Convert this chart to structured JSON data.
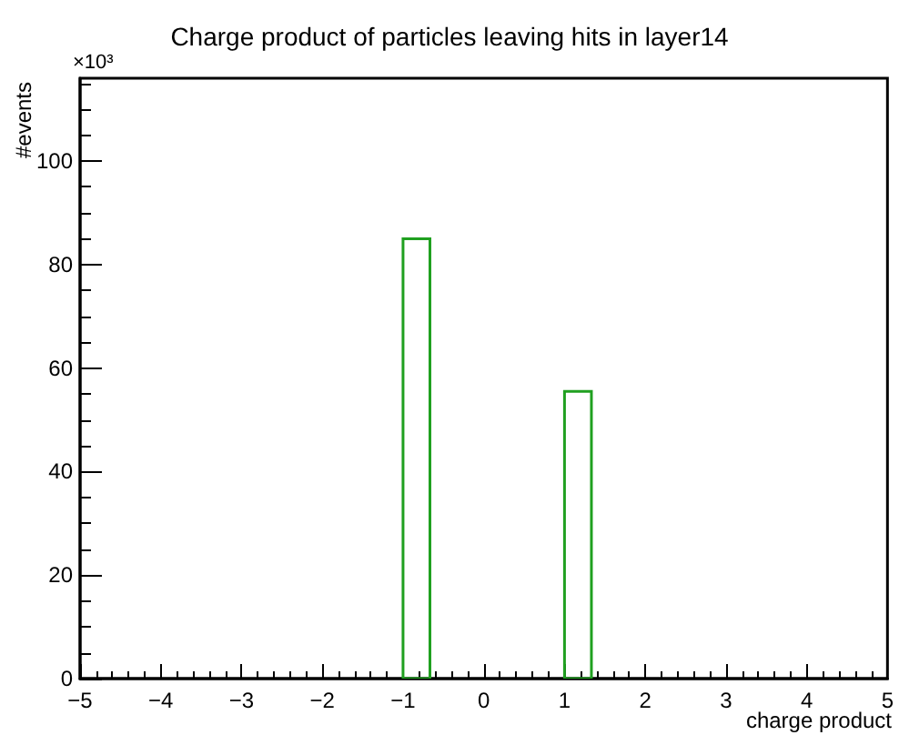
{
  "chart_data": {
    "type": "histogram",
    "title": "Charge product of particles leaving hits in layer14",
    "xlabel": "charge product",
    "ylabel": "#events",
    "annotations": [
      "×10³"
    ],
    "bins": [
      -5,
      -4.6667,
      -4.3333,
      -4,
      -3.6667,
      -3.3333,
      -3,
      -2.6667,
      -2.3333,
      -2,
      -1.6667,
      -1.3333,
      -1,
      -0.6667,
      -0.3333,
      0,
      0.3333,
      0.6667,
      1,
      1.3333,
      1.6667,
      2,
      2.3333,
      2.6667,
      3,
      3.3333,
      3.6667,
      4,
      4.3333,
      4.6667,
      5
    ],
    "values": [
      0,
      0,
      0,
      0,
      0,
      0,
      0,
      0,
      0,
      0,
      0,
      0,
      85,
      0,
      0,
      0,
      0,
      0,
      55.5,
      0,
      0,
      0,
      0,
      0,
      0,
      0,
      0,
      0,
      0,
      0
    ],
    "color": "#20a020",
    "xlim": [
      -5,
      5
    ],
    "xticks": [
      -5,
      -4,
      -3,
      -2,
      -1,
      0,
      1,
      2,
      3,
      4,
      5
    ],
    "ylim": [
      0,
      116
    ],
    "yticks": [
      0,
      20,
      40,
      60,
      80,
      100
    ],
    "grid": false
  }
}
